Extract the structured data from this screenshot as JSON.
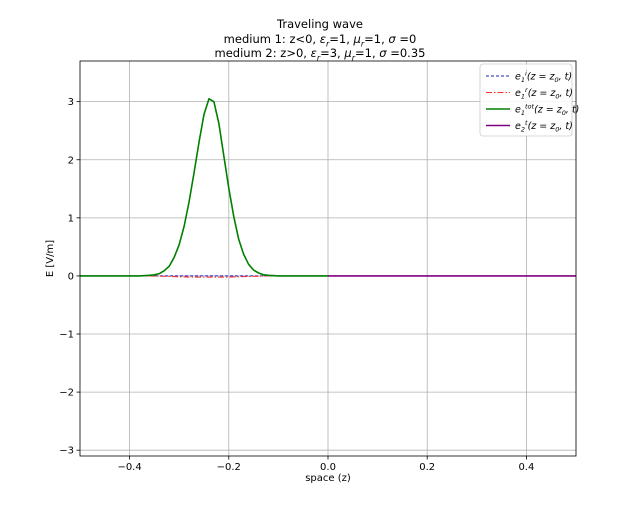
{
  "chart_data": {
    "type": "line",
    "title_lines": [
      "Traveling wave",
      "medium 1: z<0, εr=1, μr=1, σ =0",
      "medium 2: z>0, εr=3, μr=1, σ =0.35"
    ],
    "title_parts": [
      [
        {
          "t": "Traveling wave"
        }
      ],
      [
        {
          "t": "medium 1: z<0, "
        },
        {
          "t": "ε",
          "i": true
        },
        {
          "t": "r",
          "sub": true,
          "i": true
        },
        {
          "t": "=1, "
        },
        {
          "t": "μ",
          "i": true
        },
        {
          "t": "r",
          "sub": true,
          "i": true
        },
        {
          "t": "=1, "
        },
        {
          "t": "σ",
          "i": true
        },
        {
          "t": " =0"
        }
      ],
      [
        {
          "t": "medium 2: z>0, "
        },
        {
          "t": "ε",
          "i": true
        },
        {
          "t": "r",
          "sub": true,
          "i": true
        },
        {
          "t": "=3, "
        },
        {
          "t": "μ",
          "i": true
        },
        {
          "t": "r",
          "sub": true,
          "i": true
        },
        {
          "t": "=1, "
        },
        {
          "t": "σ",
          "i": true
        },
        {
          "t": " =0.35"
        }
      ]
    ],
    "xlabel": "space (z)",
    "ylabel": "E [V/m]",
    "xlim": [
      -0.5,
      0.5
    ],
    "ylim": [
      -3.1,
      3.7
    ],
    "xticks": [
      -0.4,
      -0.2,
      0.0,
      0.2,
      0.4
    ],
    "xtick_labels": [
      "−0.4",
      "−0.2",
      "0.0",
      "0.2",
      "0.4"
    ],
    "yticks": [
      -3,
      -2,
      -1,
      0,
      1,
      2,
      3
    ],
    "ytick_labels": [
      "−3",
      "−2",
      "−1",
      "0",
      "1",
      "2",
      "3"
    ],
    "grid": true,
    "legend_position": "top-right",
    "series": [
      {
        "name": "e1i(z=z0,t)",
        "legend": [
          {
            "t": "e"
          },
          {
            "t": "1",
            "sub": true
          },
          {
            "t": "i",
            "sup": true
          },
          {
            "t": "(z = z"
          },
          {
            "t": "0",
            "sub": true
          },
          {
            "t": ", t)"
          }
        ],
        "color": "#1f1fbf",
        "dash": "3,2",
        "width": 1,
        "x": [
          -0.5,
          0.0
        ],
        "y": [
          0,
          0
        ]
      },
      {
        "name": "e1r(z=z0,t)",
        "legend": [
          {
            "t": "e"
          },
          {
            "t": "1",
            "sub": true
          },
          {
            "t": "r",
            "sup": true
          },
          {
            "t": "(z = z"
          },
          {
            "t": "0",
            "sub": true
          },
          {
            "t": ", t)"
          }
        ],
        "color": "#ff2a2a",
        "dash": "6,2,1.5,2",
        "width": 1,
        "x": [
          -0.5,
          -0.36,
          -0.32,
          -0.28,
          -0.24,
          -0.2,
          -0.16,
          -0.12,
          0.0
        ],
        "y": [
          0,
          0,
          -0.01,
          -0.02,
          -0.02,
          -0.02,
          -0.01,
          0,
          0
        ]
      },
      {
        "name": "e1tot(z=z0,t)",
        "legend": [
          {
            "t": "e"
          },
          {
            "t": "1",
            "sub": true
          },
          {
            "t": "tot",
            "sup": true
          },
          {
            "t": "(z = z"
          },
          {
            "t": "0",
            "sub": true
          },
          {
            "t": ", t)"
          }
        ],
        "color": "#008000",
        "dash": "",
        "width": 1.6,
        "x": [
          -0.5,
          -0.38,
          -0.36,
          -0.35,
          -0.34,
          -0.33,
          -0.32,
          -0.31,
          -0.3,
          -0.29,
          -0.28,
          -0.27,
          -0.26,
          -0.25,
          -0.24,
          -0.23,
          -0.22,
          -0.21,
          -0.2,
          -0.19,
          -0.18,
          -0.17,
          -0.16,
          -0.15,
          -0.14,
          -0.13,
          -0.12,
          -0.1,
          0.0
        ],
        "y": [
          0,
          0,
          0.01,
          0.02,
          0.04,
          0.09,
          0.17,
          0.32,
          0.54,
          0.86,
          1.28,
          1.78,
          2.3,
          2.78,
          3.05,
          3.0,
          2.62,
          2.07,
          1.51,
          1.02,
          0.63,
          0.37,
          0.2,
          0.1,
          0.05,
          0.02,
          0.01,
          0,
          0
        ]
      },
      {
        "name": "e2t(z=z0,t)",
        "legend": [
          {
            "t": "e"
          },
          {
            "t": "2",
            "sub": true
          },
          {
            "t": "t",
            "sup": true
          },
          {
            "t": "(z = z"
          },
          {
            "t": "0",
            "sub": true
          },
          {
            "t": ", t)"
          }
        ],
        "color": "#800080",
        "dash": "",
        "width": 1.6,
        "x": [
          0.0,
          0.5
        ],
        "y": [
          0,
          0
        ]
      }
    ]
  }
}
